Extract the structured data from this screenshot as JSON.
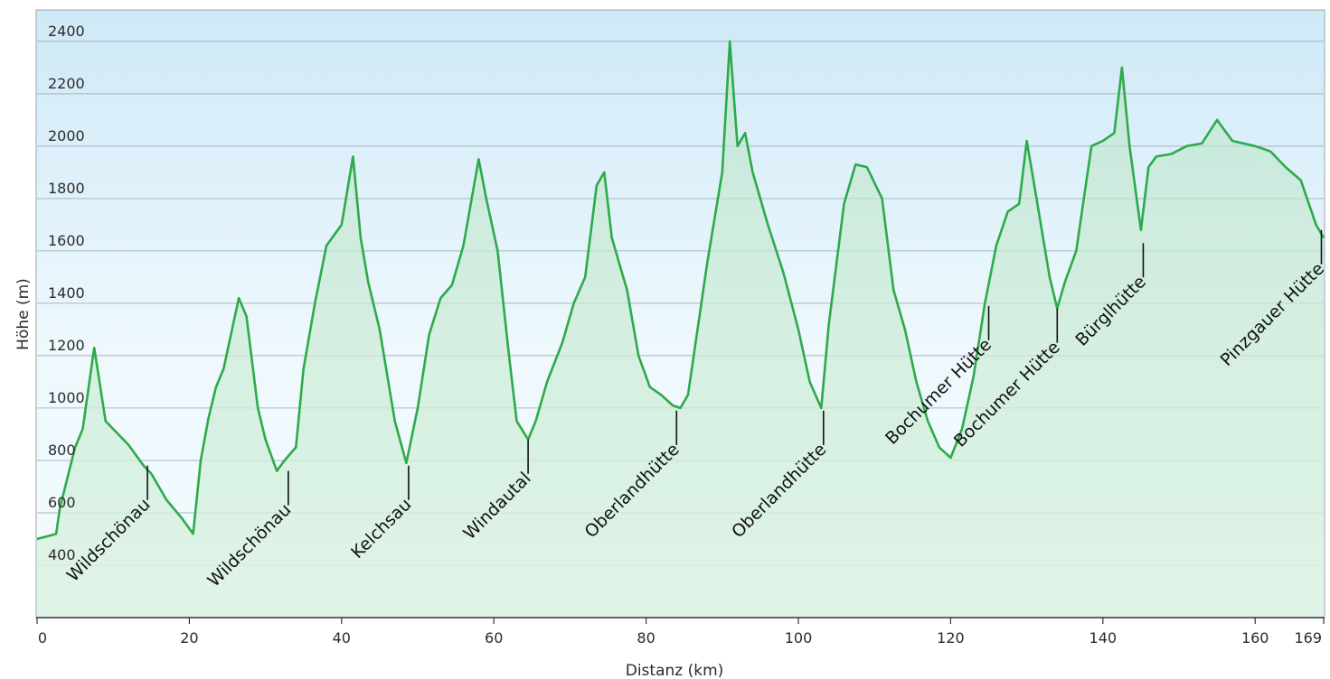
{
  "chart_data": {
    "type": "area",
    "xlabel": "Distanz  (km)",
    "ylabel": "Höhe (m)",
    "xlim": [
      0,
      169
    ],
    "ylim": [
      200,
      2520
    ],
    "x_ticks": [
      0,
      20,
      40,
      60,
      80,
      100,
      120,
      140,
      160,
      169
    ],
    "y_ticks": [
      400,
      600,
      800,
      1000,
      1200,
      1400,
      1600,
      1800,
      2000,
      2200,
      2400
    ],
    "grid": "horizontal",
    "series": [
      {
        "line_color": "#2daa4a",
        "x": [
          0,
          2.5,
          3,
          5,
          6,
          7.5,
          9,
          10,
          12,
          14,
          15,
          17,
          19,
          20.5,
          21.5,
          22.5,
          23.5,
          24.5,
          26.5,
          27.5,
          29,
          30,
          31.5,
          32.5,
          34,
          35,
          36.5,
          38,
          39.5,
          40,
          41.5,
          42.5,
          43.5,
          45,
          47,
          48.5,
          50,
          51.5,
          53,
          54.5,
          56,
          58,
          59,
          60.5,
          62,
          63,
          64.5,
          65.5,
          67,
          69,
          70.5,
          72,
          73.5,
          74.5,
          75.5,
          76.5,
          77.5,
          79,
          80.5,
          82,
          83.5,
          84.5,
          85.5,
          87,
          88,
          90,
          91,
          92,
          93,
          94,
          96,
          98,
          100,
          101.5,
          103,
          104,
          106,
          107.5,
          109,
          111,
          112.5,
          114,
          115.5,
          117,
          118.5,
          120,
          121.5,
          123,
          124.5,
          126,
          127.5,
          129,
          130,
          131,
          133,
          134,
          135,
          136.5,
          138.5,
          140,
          141.5,
          142.5,
          143.5,
          145,
          146,
          147,
          149,
          151,
          153,
          155,
          157,
          160,
          162,
          164,
          166,
          168,
          169
        ],
        "y": [
          500,
          520,
          620,
          850,
          920,
          1230,
          950,
          920,
          860,
          780,
          750,
          650,
          580,
          520,
          800,
          960,
          1080,
          1150,
          1420,
          1350,
          1000,
          880,
          760,
          800,
          850,
          1150,
          1400,
          1620,
          1680,
          1700,
          1960,
          1650,
          1480,
          1300,
          950,
          790,
          1000,
          1280,
          1420,
          1470,
          1620,
          1950,
          1800,
          1600,
          1200,
          950,
          880,
          950,
          1100,
          1250,
          1400,
          1500,
          1850,
          1900,
          1650,
          1550,
          1450,
          1200,
          1080,
          1050,
          1010,
          1000,
          1050,
          1350,
          1550,
          1900,
          2400,
          2000,
          2050,
          1900,
          1700,
          1520,
          1300,
          1100,
          1000,
          1320,
          1780,
          1930,
          1920,
          1800,
          1450,
          1300,
          1100,
          950,
          850,
          810,
          920,
          1120,
          1400,
          1620,
          1750,
          1780,
          2020,
          1850,
          1500,
          1380,
          1480,
          1600,
          2000,
          2020,
          2050,
          2300,
          2000,
          1680,
          1920,
          1960,
          1970,
          2000,
          2010,
          2100,
          2020,
          2000,
          1980,
          1920,
          1870,
          1700,
          1650
        ]
      }
    ],
    "waypoints": [
      {
        "name": "Wildschönau",
        "km": 14.5,
        "ele": 780
      },
      {
        "name": "Wildschönau",
        "km": 33,
        "ele": 760
      },
      {
        "name": "Kelchsau",
        "km": 48.8,
        "ele": 780
      },
      {
        "name": "Windautal",
        "km": 64.5,
        "ele": 880
      },
      {
        "name": "Oberlandhütte",
        "km": 84,
        "ele": 990
      },
      {
        "name": "Oberlandhütte",
        "km": 103.3,
        "ele": 990
      },
      {
        "name": "Bochumer Hütte",
        "km": 125,
        "ele": 1390
      },
      {
        "name": "Bochumer Hütte",
        "km": 134,
        "ele": 1380
      },
      {
        "name": "Bürglhütte",
        "km": 145.3,
        "ele": 1630
      },
      {
        "name": "Pinzgauer Hütte",
        "km": 168.7,
        "ele": 1680
      }
    ]
  }
}
